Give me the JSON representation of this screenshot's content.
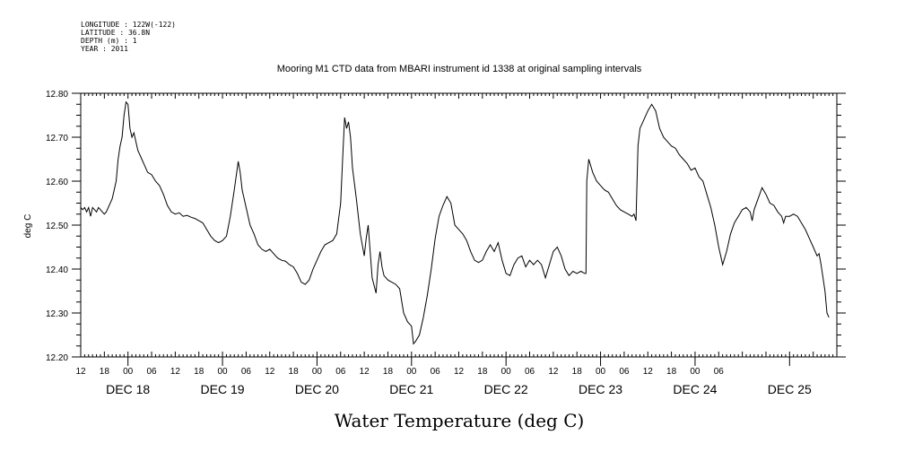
{
  "header": {
    "longitude": "LONGITUDE : 122W(-122)",
    "latitude": "LATITUDE : 36.8N",
    "depth": "DEPTH (m) : 1",
    "year": "YEAR : 2011"
  },
  "chart_data": {
    "type": "line",
    "title": "Mooring M1 CTD data from MBARI instrument id 1338 at original sampling intervals",
    "xlabel": "Water Temperature (deg C)",
    "ylabel": "deg C",
    "ylim": [
      12.2,
      12.8
    ],
    "yticks": [
      "12.20",
      "12.30",
      "12.40",
      "12.50",
      "12.60",
      "12.70",
      "12.80"
    ],
    "xlim_hours": [
      12,
      204
    ],
    "hour_tick_labels": [
      "12",
      "18",
      "00",
      "06",
      "12",
      "18",
      "00",
      "06",
      "12",
      "18",
      "00",
      "06",
      "12",
      "18",
      "00",
      "06",
      "12",
      "18",
      "00",
      "06",
      "12",
      "18",
      "00",
      "06",
      "12",
      "18",
      "00",
      "06"
    ],
    "day_labels": [
      "DEC 18",
      "DEC 19",
      "DEC 20",
      "DEC 21",
      "DEC 22",
      "DEC 23",
      "DEC 24",
      "DEC 25"
    ],
    "grid": false,
    "series": [
      {
        "color": "#000000",
        "points": [
          [
            12.0,
            12.54
          ],
          [
            12.5,
            12.535
          ],
          [
            13.0,
            12.54
          ],
          [
            13.5,
            12.53
          ],
          [
            14.0,
            12.54
          ],
          [
            14.5,
            12.52
          ],
          [
            15.0,
            12.54
          ],
          [
            15.5,
            12.535
          ],
          [
            16.0,
            12.53
          ],
          [
            16.5,
            12.54
          ],
          [
            17.0,
            12.535
          ],
          [
            17.5,
            12.53
          ],
          [
            18.0,
            12.525
          ],
          [
            18.5,
            12.53
          ],
          [
            19.0,
            12.54
          ],
          [
            20.0,
            12.56
          ],
          [
            21.0,
            12.6
          ],
          [
            21.5,
            12.65
          ],
          [
            22.0,
            12.68
          ],
          [
            22.5,
            12.7
          ],
          [
            23.0,
            12.75
          ],
          [
            23.5,
            12.78
          ],
          [
            24.0,
            12.775
          ],
          [
            24.5,
            12.72
          ],
          [
            25.0,
            12.7
          ],
          [
            25.5,
            12.71
          ],
          [
            26.0,
            12.69
          ],
          [
            26.5,
            12.67
          ],
          [
            27.0,
            12.66
          ],
          [
            27.5,
            12.65
          ],
          [
            28.0,
            12.64
          ],
          [
            29.0,
            12.62
          ],
          [
            30.0,
            12.615
          ],
          [
            31.0,
            12.6
          ],
          [
            32.0,
            12.59
          ],
          [
            33.0,
            12.57
          ],
          [
            34.0,
            12.545
          ],
          [
            35.0,
            12.53
          ],
          [
            36.0,
            12.525
          ],
          [
            37.0,
            12.528
          ],
          [
            38.0,
            12.52
          ],
          [
            39.0,
            12.522
          ],
          [
            40.0,
            12.518
          ],
          [
            41.0,
            12.515
          ],
          [
            42.0,
            12.51
          ],
          [
            43.0,
            12.505
          ],
          [
            44.0,
            12.49
          ],
          [
            45.0,
            12.475
          ],
          [
            46.0,
            12.465
          ],
          [
            47.0,
            12.46
          ],
          [
            48.0,
            12.465
          ],
          [
            49.0,
            12.475
          ],
          [
            50.0,
            12.52
          ],
          [
            51.0,
            12.58
          ],
          [
            52.0,
            12.645
          ],
          [
            52.5,
            12.62
          ],
          [
            53.0,
            12.58
          ],
          [
            54.0,
            12.54
          ],
          [
            55.0,
            12.5
          ],
          [
            56.0,
            12.48
          ],
          [
            57.0,
            12.455
          ],
          [
            58.0,
            12.445
          ],
          [
            59.0,
            12.44
          ],
          [
            60.0,
            12.445
          ],
          [
            61.0,
            12.435
          ],
          [
            62.0,
            12.425
          ],
          [
            63.0,
            12.42
          ],
          [
            64.0,
            12.418
          ],
          [
            65.0,
            12.41
          ],
          [
            66.0,
            12.405
          ],
          [
            67.0,
            12.39
          ],
          [
            68.0,
            12.37
          ],
          [
            69.0,
            12.365
          ],
          [
            70.0,
            12.375
          ],
          [
            71.0,
            12.4
          ],
          [
            72.0,
            12.42
          ],
          [
            73.0,
            12.44
          ],
          [
            74.0,
            12.455
          ],
          [
            75.0,
            12.46
          ],
          [
            76.0,
            12.465
          ],
          [
            77.0,
            12.48
          ],
          [
            78.0,
            12.55
          ],
          [
            78.5,
            12.65
          ],
          [
            79.0,
            12.745
          ],
          [
            79.5,
            12.72
          ],
          [
            80.0,
            12.735
          ],
          [
            80.5,
            12.7
          ],
          [
            81.0,
            12.63
          ],
          [
            82.0,
            12.56
          ],
          [
            83.0,
            12.48
          ],
          [
            84.0,
            12.43
          ],
          [
            84.5,
            12.47
          ],
          [
            85.0,
            12.5
          ],
          [
            85.5,
            12.44
          ],
          [
            86.0,
            12.38
          ],
          [
            87.0,
            12.345
          ],
          [
            87.5,
            12.41
          ],
          [
            88.0,
            12.44
          ],
          [
            88.5,
            12.405
          ],
          [
            89.0,
            12.385
          ],
          [
            90.0,
            12.375
          ],
          [
            91.0,
            12.37
          ],
          [
            92.0,
            12.365
          ],
          [
            93.0,
            12.355
          ],
          [
            94.0,
            12.3
          ],
          [
            95.0,
            12.28
          ],
          [
            96.0,
            12.27
          ],
          [
            96.5,
            12.23
          ],
          [
            97.0,
            12.235
          ],
          [
            98.0,
            12.25
          ],
          [
            99.0,
            12.29
          ],
          [
            100.0,
            12.34
          ],
          [
            101.0,
            12.4
          ],
          [
            102.0,
            12.47
          ],
          [
            103.0,
            12.52
          ],
          [
            104.0,
            12.545
          ],
          [
            105.0,
            12.565
          ],
          [
            106.0,
            12.55
          ],
          [
            107.0,
            12.5
          ],
          [
            108.0,
            12.49
          ],
          [
            109.0,
            12.48
          ],
          [
            110.0,
            12.465
          ],
          [
            111.0,
            12.44
          ],
          [
            112.0,
            12.42
          ],
          [
            113.0,
            12.415
          ],
          [
            114.0,
            12.42
          ],
          [
            115.0,
            12.44
          ],
          [
            116.0,
            12.455
          ],
          [
            117.0,
            12.44
          ],
          [
            118.0,
            12.46
          ],
          [
            119.0,
            12.42
          ],
          [
            120.0,
            12.39
          ],
          [
            121.0,
            12.385
          ],
          [
            122.0,
            12.41
          ],
          [
            123.0,
            12.425
          ],
          [
            124.0,
            12.43
          ],
          [
            125.0,
            12.405
          ],
          [
            126.0,
            12.42
          ],
          [
            127.0,
            12.41
          ],
          [
            128.0,
            12.42
          ],
          [
            129.0,
            12.41
          ],
          [
            130.0,
            12.38
          ],
          [
            131.0,
            12.41
          ],
          [
            132.0,
            12.44
          ],
          [
            133.0,
            12.45
          ],
          [
            134.0,
            12.43
          ],
          [
            135.0,
            12.4
          ],
          [
            136.0,
            12.385
          ],
          [
            137.0,
            12.395
          ],
          [
            138.0,
            12.39
          ],
          [
            139.0,
            12.395
          ],
          [
            140.0,
            12.39
          ],
          [
            140.3,
            12.39
          ],
          [
            140.5,
            12.6
          ],
          [
            141.0,
            12.65
          ],
          [
            142.0,
            12.62
          ],
          [
            143.0,
            12.6
          ],
          [
            144.0,
            12.59
          ],
          [
            145.0,
            12.58
          ],
          [
            146.0,
            12.575
          ],
          [
            147.0,
            12.56
          ],
          [
            148.0,
            12.545
          ],
          [
            149.0,
            12.535
          ],
          [
            150.0,
            12.53
          ],
          [
            151.0,
            12.525
          ],
          [
            152.0,
            12.52
          ],
          [
            152.5,
            12.525
          ],
          [
            153.0,
            12.51
          ],
          [
            153.5,
            12.68
          ],
          [
            154.0,
            12.72
          ],
          [
            155.0,
            12.74
          ],
          [
            156.0,
            12.76
          ],
          [
            157.0,
            12.775
          ],
          [
            158.0,
            12.76
          ],
          [
            159.0,
            12.72
          ],
          [
            160.0,
            12.7
          ],
          [
            161.0,
            12.69
          ],
          [
            162.0,
            12.68
          ],
          [
            163.0,
            12.675
          ],
          [
            164.0,
            12.66
          ],
          [
            165.0,
            12.65
          ],
          [
            166.0,
            12.64
          ],
          [
            167.0,
            12.625
          ],
          [
            168.0,
            12.63
          ],
          [
            169.0,
            12.61
          ],
          [
            170.0,
            12.6
          ],
          [
            171.0,
            12.57
          ],
          [
            172.0,
            12.54
          ],
          [
            173.0,
            12.5
          ],
          [
            174.0,
            12.45
          ],
          [
            175.0,
            12.41
          ],
          [
            176.0,
            12.44
          ],
          [
            177.0,
            12.48
          ],
          [
            178.0,
            12.505
          ],
          [
            179.0,
            12.52
          ],
          [
            180.0,
            12.535
          ],
          [
            181.0,
            12.54
          ],
          [
            182.0,
            12.53
          ],
          [
            182.5,
            12.51
          ],
          [
            183.0,
            12.535
          ],
          [
            184.0,
            12.56
          ],
          [
            185.0,
            12.585
          ],
          [
            186.0,
            12.57
          ],
          [
            187.0,
            12.55
          ],
          [
            188.0,
            12.545
          ],
          [
            189.0,
            12.53
          ],
          [
            190.0,
            12.52
          ],
          [
            190.5,
            12.505
          ],
          [
            191.0,
            12.52
          ],
          [
            192.0,
            12.52
          ],
          [
            193.0,
            12.525
          ],
          [
            194.0,
            12.52
          ],
          [
            195.0,
            12.505
          ],
          [
            196.0,
            12.49
          ],
          [
            197.0,
            12.47
          ],
          [
            198.0,
            12.45
          ],
          [
            199.0,
            12.43
          ],
          [
            199.5,
            12.435
          ],
          [
            200.0,
            12.41
          ],
          [
            201.0,
            12.35
          ],
          [
            201.5,
            12.3
          ],
          [
            202.0,
            12.29
          ]
        ]
      }
    ]
  }
}
